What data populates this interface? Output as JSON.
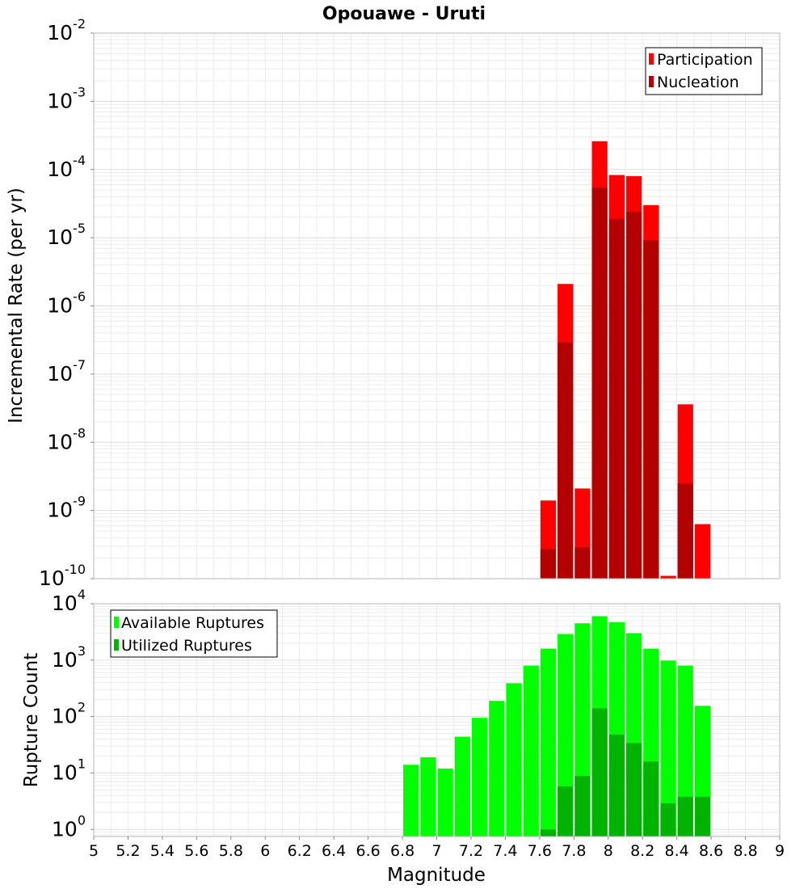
{
  "chart_data": [
    {
      "type": "bar",
      "title": "Opouawe - Uruti",
      "xlabel": "",
      "ylabel": "Incremental Rate (per yr)",
      "xlim": [
        5,
        9
      ],
      "ylim": [
        1e-10,
        0.01
      ],
      "yscale": "log",
      "grid": true,
      "legend": "top-right",
      "bin_width": 0.1,
      "series": [
        {
          "name": "Participation",
          "color": "#ff0000",
          "points": [
            [
              7.65,
              1.4e-09
            ],
            [
              7.75,
              2.1e-06
            ],
            [
              7.85,
              2.1e-09
            ],
            [
              7.95,
              0.00026
            ],
            [
              8.05,
              8.3e-05
            ],
            [
              8.15,
              8e-05
            ],
            [
              8.25,
              3e-05
            ],
            [
              8.35,
              1.1e-10
            ],
            [
              8.45,
              3.6e-08
            ],
            [
              8.55,
              6.3e-10
            ]
          ]
        },
        {
          "name": "Nucleation",
          "color": "#b30000",
          "points": [
            [
              7.65,
              2.7e-10
            ],
            [
              7.75,
              2.9e-07
            ],
            [
              7.85,
              2.9e-10
            ],
            [
              7.95,
              5.4e-05
            ],
            [
              8.05,
              1.9e-05
            ],
            [
              8.15,
              2.4e-05
            ],
            [
              8.25,
              9.2e-06
            ],
            [
              8.45,
              2.5e-09
            ]
          ]
        }
      ]
    },
    {
      "type": "bar",
      "title": "",
      "xlabel": "Magnitude",
      "ylabel": "Rupture Count",
      "xlim": [
        5,
        9
      ],
      "ylim": [
        0.75,
        10000
      ],
      "yscale": "log",
      "grid": true,
      "legend": "top-left",
      "bin_width": 0.1,
      "x_ticks": [
        "5",
        "5.2",
        "5.4",
        "5.6",
        "5.8",
        "6",
        "6.2",
        "6.4",
        "6.6",
        "6.8",
        "7",
        "7.2",
        "7.4",
        "7.6",
        "7.8",
        "8",
        "8.2",
        "8.4",
        "8.6",
        "8.8",
        "9"
      ],
      "series": [
        {
          "name": "Available Ruptures",
          "color": "#00ff00",
          "points": [
            [
              6.85,
              14
            ],
            [
              6.95,
              19
            ],
            [
              7.05,
              12
            ],
            [
              7.15,
              44
            ],
            [
              7.25,
              95
            ],
            [
              7.35,
              190
            ],
            [
              7.45,
              390
            ],
            [
              7.55,
              800
            ],
            [
              7.65,
              1600
            ],
            [
              7.75,
              2900
            ],
            [
              7.85,
              4500
            ],
            [
              7.95,
              6000
            ],
            [
              8.05,
              4700
            ],
            [
              8.15,
              3000
            ],
            [
              8.25,
              1600
            ],
            [
              8.35,
              980
            ],
            [
              8.45,
              800
            ],
            [
              8.55,
              155
            ]
          ]
        },
        {
          "name": "Utilized Ruptures",
          "color": "#00b300",
          "points": [
            [
              7.65,
              1
            ],
            [
              7.75,
              5.8
            ],
            [
              7.85,
              8.8
            ],
            [
              7.95,
              140
            ],
            [
              8.05,
              48
            ],
            [
              8.15,
              34
            ],
            [
              8.25,
              16
            ],
            [
              8.35,
              2.9
            ],
            [
              8.45,
              3.8
            ],
            [
              8.55,
              3.8
            ]
          ]
        }
      ]
    }
  ]
}
